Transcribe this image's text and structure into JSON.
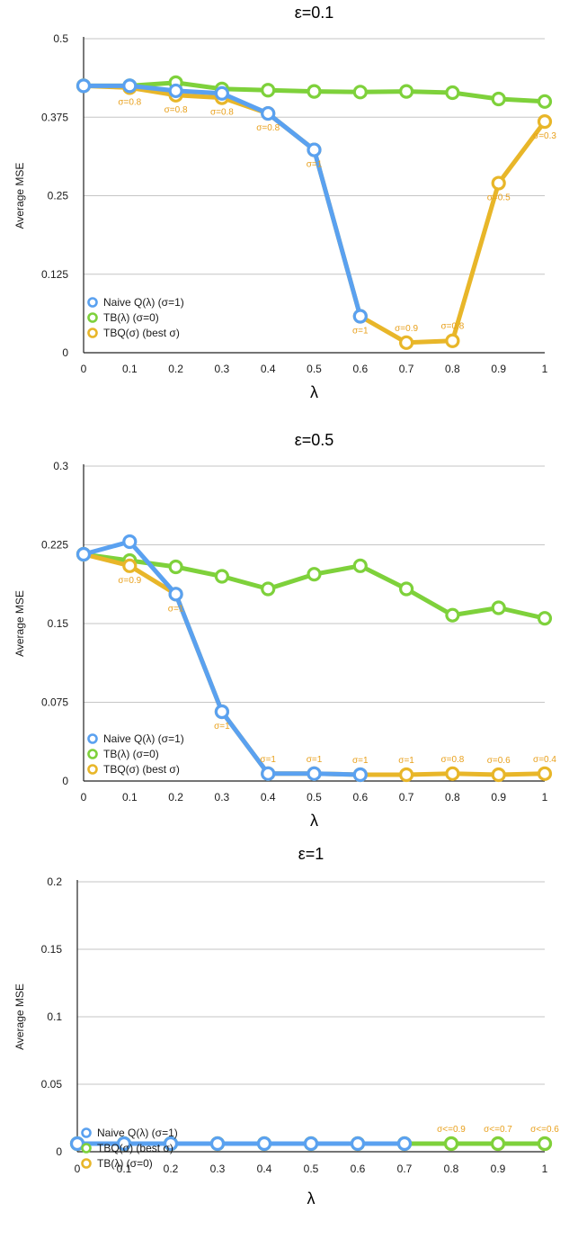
{
  "chart_data": [
    {
      "type": "line",
      "title": "ε=0.1",
      "xlabel": "λ",
      "ylabel": "Average MSE",
      "x": [
        0,
        0.1,
        0.2,
        0.3,
        0.4,
        0.5,
        0.6,
        0.7,
        0.8,
        0.9,
        1
      ],
      "x_tick_labels": [
        "0",
        "0.1",
        "0.2",
        "0.3",
        "0.4",
        "0.5",
        "0.6",
        "0.7",
        "0.8",
        "0.9",
        "1"
      ],
      "ylim": [
        0,
        0.5
      ],
      "y_ticks": [
        0,
        0.125,
        0.25,
        0.375,
        0.5
      ],
      "y_tick_labels": [
        "0",
        "0.125",
        "0.25",
        "0.375",
        "0.5"
      ],
      "grid": true,
      "legend_position": "bottom-left",
      "series": [
        {
          "name": "TB(λ) (σ=0)",
          "color": "#7ed13b",
          "values": [
            0.425,
            0.425,
            0.43,
            0.42,
            0.418,
            0.416,
            0.415,
            0.416,
            0.414,
            0.404,
            0.4
          ]
        },
        {
          "name": "TBQ(σ) (best σ)",
          "color": "#e8b629",
          "values": [
            0.425,
            0.422,
            0.41,
            0.406,
            0.381,
            0.323,
            0.058,
            0.016,
            0.019,
            0.27,
            0.368
          ]
        },
        {
          "name": "Naive Q(λ) (σ=1)",
          "color": "#5aa1f0",
          "values": [
            0.425,
            0.425,
            0.417,
            0.413,
            0.381,
            0.323,
            0.058,
            null,
            null,
            null,
            null
          ]
        }
      ],
      "legend_order": [
        "Naive Q(λ) (σ=1)",
        "TB(λ) (σ=0)",
        "TBQ(σ) (best σ)"
      ],
      "annotations": [
        {
          "x": 0.1,
          "text": "σ=0.8",
          "y_at": 0.422,
          "pos": "below"
        },
        {
          "x": 0.2,
          "text": "σ=0.8",
          "y_at": 0.41,
          "pos": "below"
        },
        {
          "x": 0.3,
          "text": "σ=0.8",
          "y_at": 0.406,
          "pos": "below"
        },
        {
          "x": 0.4,
          "text": "σ=0.8",
          "y_at": 0.381,
          "pos": "below"
        },
        {
          "x": 0.5,
          "text": "σ=1",
          "y_at": 0.323,
          "pos": "below"
        },
        {
          "x": 0.6,
          "text": "σ=1",
          "y_at": 0.058,
          "pos": "below"
        },
        {
          "x": 0.7,
          "text": "σ=0.9",
          "y_at": 0.016,
          "pos": "above"
        },
        {
          "x": 0.8,
          "text": "σ=0.8",
          "y_at": 0.019,
          "pos": "above"
        },
        {
          "x": 0.9,
          "text": "σ=0.5",
          "y_at": 0.27,
          "pos": "below"
        },
        {
          "x": 1,
          "text": "σ=0.3",
          "y_at": 0.368,
          "pos": "below"
        }
      ]
    },
    {
      "type": "line",
      "title": "ε=0.5",
      "xlabel": "λ",
      "ylabel": "Average MSE",
      "x": [
        0,
        0.1,
        0.2,
        0.3,
        0.4,
        0.5,
        0.6,
        0.7,
        0.8,
        0.9,
        1
      ],
      "x_tick_labels": [
        "0",
        "0.1",
        "0.2",
        "0.3",
        "0.4",
        "0.5",
        "0.6",
        "0.7",
        "0.8",
        "0.9",
        "1"
      ],
      "ylim": [
        0,
        0.3
      ],
      "y_ticks": [
        0,
        0.075,
        0.15,
        0.225,
        0.3
      ],
      "y_tick_labels": [
        "0",
        "0.075",
        "0.15",
        "0.225",
        "0.3"
      ],
      "grid": true,
      "legend_position": "bottom-left",
      "series": [
        {
          "name": "TB(λ) (σ=0)",
          "color": "#7ed13b",
          "values": [
            0.216,
            0.21,
            0.204,
            0.195,
            0.183,
            0.197,
            0.205,
            0.183,
            0.158,
            0.165,
            0.155
          ]
        },
        {
          "name": "TBQ(σ) (best σ)",
          "color": "#e8b629",
          "values": [
            0.216,
            0.205,
            0.178,
            0.066,
            0.007,
            0.007,
            0.006,
            0.006,
            0.007,
            0.006,
            0.007
          ]
        },
        {
          "name": "Naive Q(λ) (σ=1)",
          "color": "#5aa1f0",
          "values": [
            0.216,
            0.228,
            0.178,
            0.066,
            0.007,
            0.007,
            0.006,
            null,
            null,
            null,
            null
          ]
        }
      ],
      "legend_order": [
        "Naive Q(λ) (σ=1)",
        "TB(λ) (σ=0)",
        "TBQ(σ) (best σ)"
      ],
      "annotations": [
        {
          "x": 0.1,
          "text": "σ=0.9",
          "y_at": 0.205,
          "pos": "below"
        },
        {
          "x": 0.2,
          "text": "σ=1",
          "y_at": 0.178,
          "pos": "below"
        },
        {
          "x": 0.3,
          "text": "σ=1",
          "y_at": 0.066,
          "pos": "below"
        },
        {
          "x": 0.4,
          "text": "σ=1",
          "y_at": 0.007,
          "pos": "above"
        },
        {
          "x": 0.5,
          "text": "σ=1",
          "y_at": 0.007,
          "pos": "above"
        },
        {
          "x": 0.6,
          "text": "σ=1",
          "y_at": 0.006,
          "pos": "above"
        },
        {
          "x": 0.7,
          "text": "σ=1",
          "y_at": 0.006,
          "pos": "above"
        },
        {
          "x": 0.8,
          "text": "σ=0.8",
          "y_at": 0.007,
          "pos": "above"
        },
        {
          "x": 0.9,
          "text": "σ=0.6",
          "y_at": 0.006,
          "pos": "above"
        },
        {
          "x": 1,
          "text": "σ=0.4",
          "y_at": 0.007,
          "pos": "above"
        }
      ]
    },
    {
      "type": "line",
      "title": "ε=1",
      "xlabel": "λ",
      "ylabel": "Average MSE",
      "x": [
        0,
        0.1,
        0.2,
        0.3,
        0.4,
        0.5,
        0.6,
        0.7,
        0.8,
        0.9,
        1
      ],
      "x_tick_labels": [
        "0",
        "0.1",
        "0.2",
        "0.3",
        "0.4",
        "0.5",
        "0.6",
        "0.7",
        "0.8",
        "0.9",
        "1"
      ],
      "ylim": [
        0,
        0.2
      ],
      "y_ticks": [
        0,
        0.05,
        0.1,
        0.15,
        0.2
      ],
      "y_tick_labels": [
        "0",
        "0.05",
        "0.1",
        "0.15",
        "0.2"
      ],
      "grid": true,
      "legend_position": "bottom-left",
      "series": [
        {
          "name": "TB(λ) (σ=0)",
          "color": "#e8b629",
          "values": [
            0.006,
            0.006,
            0.006,
            0.006,
            0.006,
            0.006,
            0.006,
            0.006,
            0.006,
            0.006,
            0.006
          ]
        },
        {
          "name": "TBQ(σ) (best σ)",
          "color": "#7ed13b",
          "values": [
            0.006,
            0.006,
            0.006,
            0.006,
            0.006,
            0.006,
            0.006,
            0.006,
            0.006,
            0.006,
            0.006
          ]
        },
        {
          "name": "Naive Q(λ) (σ=1)",
          "color": "#5aa1f0",
          "values": [
            0.006,
            0.006,
            0.006,
            0.006,
            0.006,
            0.006,
            0.006,
            0.006,
            null,
            null,
            null
          ]
        }
      ],
      "legend_order": [
        "Naive Q(λ) (σ=1)",
        "TBQ(σ) (best σ)",
        "TB(λ) (σ=0)"
      ],
      "annotations": [
        {
          "x": 0.8,
          "text": "σ<=0.9",
          "y_at": 0.006,
          "pos": "above"
        },
        {
          "x": 0.9,
          "text": "σ<=0.7",
          "y_at": 0.006,
          "pos": "above"
        },
        {
          "x": 1,
          "text": "σ<=0.6",
          "y_at": 0.006,
          "pos": "above"
        }
      ]
    }
  ],
  "annotation_color": "#e8a01c"
}
